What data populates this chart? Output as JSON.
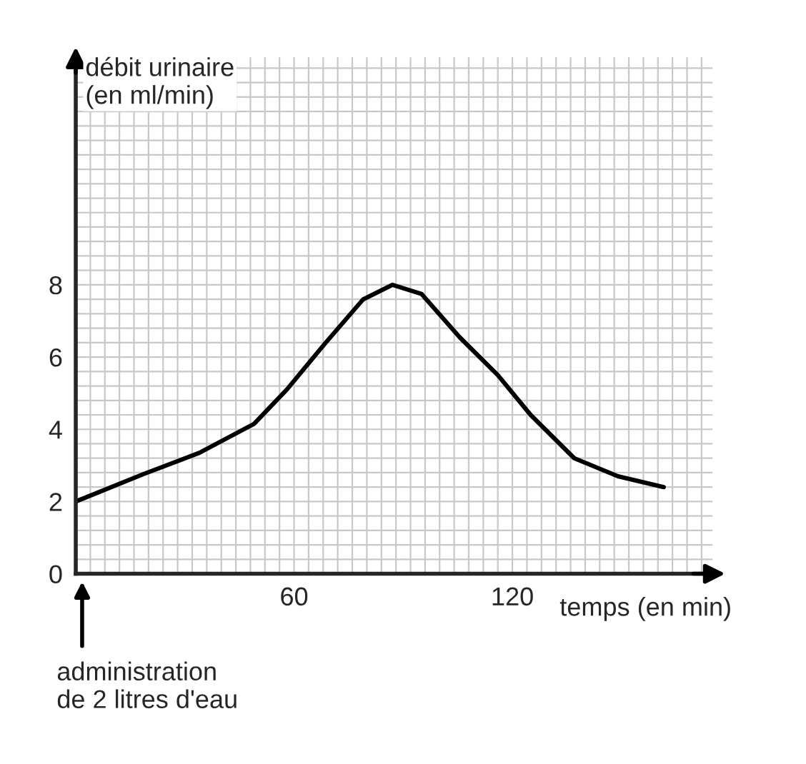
{
  "chart_data": {
    "type": "line",
    "xlabel": "temps (en min)",
    "ylabel": "débit urinaire\n(en ml/min)",
    "x": [
      0,
      18.6,
      34,
      49,
      58,
      68.7,
      79,
      87,
      95,
      105.5,
      116,
      125,
      137,
      149,
      161.6
    ],
    "series": [
      {
        "color": "#000000",
        "values": [
          2,
          2.76,
          3.35,
          4.15,
          5.1,
          6.4,
          7.6,
          8.0,
          7.75,
          6.55,
          5.5,
          4.4,
          3.2,
          2.7,
          2.4
        ]
      }
    ],
    "xlim": [
      0,
      175
    ],
    "ylim": [
      0,
      14.3
    ],
    "xticks": [
      60,
      120
    ],
    "yticks": [
      0,
      2,
      4,
      6,
      8
    ],
    "annotations": [
      "administration\nde 2 litres d'eau"
    ],
    "grid": true,
    "marker": "none",
    "line_style": "solid",
    "legend": false
  }
}
